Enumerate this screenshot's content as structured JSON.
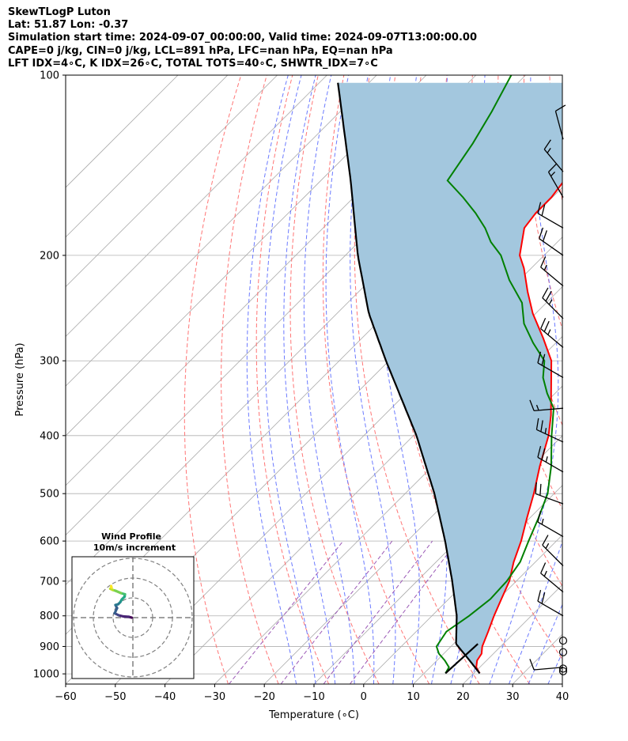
{
  "title_lines": [
    "SkewTLogP Luton",
    "Lat: 51.87   Lon: -0.37",
    "Simulation start time: 2024-09-07_00:00:00, Valid time: 2024-09-07T13:00:00.00",
    "CAPE=0 j/kg, CIN=0 j/kg, LCL=891 hPa, LFC=nan hPa, EQ=nan hPa",
    "LFT IDX=4∘C, K IDX=26∘C, TOTAL TOTS=40∘C, SHWTR_IDX=7∘C"
  ],
  "chart_data": {
    "type": "line",
    "subtype": "skew-t log-p",
    "xlabel": "Temperature (∘C)",
    "ylabel": "Pressure (hPa)",
    "xlim": [
      -60,
      40
    ],
    "ylim": [
      1040,
      100
    ],
    "y_scale": "log",
    "x_ticks": [
      -60,
      -50,
      -40,
      -30,
      -20,
      -10,
      0,
      10,
      20,
      30,
      40
    ],
    "y_ticks": [
      100,
      200,
      300,
      400,
      500,
      600,
      700,
      800,
      900,
      1000
    ],
    "grid": true,
    "series": [
      {
        "role": "temperature",
        "color": "#ff0000",
        "p": [
          998,
          975,
          950,
          925,
          900,
          850,
          800,
          750,
          700,
          650,
          600,
          550,
          500,
          450,
          400,
          370,
          340,
          300,
          275,
          250,
          230,
          210,
          200,
          180,
          170,
          160,
          150,
          140,
          130,
          120,
          110,
          100
        ],
        "t": [
          21.2,
          19.3,
          18.1,
          17.6,
          16.3,
          14.5,
          12.5,
          10.6,
          8.6,
          5.6,
          2.9,
          -0.5,
          -4.1,
          -8.4,
          -12.8,
          -16.4,
          -20.8,
          -27.3,
          -33.5,
          -40.6,
          -46.0,
          -51.5,
          -54.9,
          -59.5,
          -60.2,
          -60.2,
          -61.0,
          -62.7,
          -65.2,
          -68.8,
          -71.3,
          -74.2
        ]
      },
      {
        "role": "dewpoint",
        "color": "#008000",
        "p": [
          998,
          975,
          950,
          925,
          900,
          850,
          800,
          750,
          700,
          650,
          600,
          550,
          500,
          450,
          400,
          360,
          340,
          320,
          300,
          280,
          260,
          240,
          220,
          200,
          190,
          180,
          170,
          160,
          150,
          130,
          115,
          100
        ],
        "td": [
          14.3,
          13.8,
          11.6,
          9.0,
          7.1,
          6.1,
          7.5,
          8.4,
          8.1,
          6.9,
          4.4,
          1.8,
          -1.3,
          -6.1,
          -12.2,
          -17.3,
          -21.6,
          -25.6,
          -28.7,
          -34.6,
          -40.3,
          -44.9,
          -52.0,
          -58.7,
          -63.4,
          -67.4,
          -72.3,
          -78.0,
          -84.5,
          -86.9,
          -89.5,
          -92.9
        ]
      },
      {
        "role": "parcel",
        "color": "#000000",
        "p": [
          998,
          950,
          891,
          850,
          800,
          700,
          600,
          500,
          400,
          300,
          250,
          200,
          150,
          100
        ],
        "t": [
          21.2,
          16.6,
          10.5,
          8.1,
          5.0,
          -2.9,
          -12.4,
          -24.1,
          -39.4,
          -60.6,
          -73.6,
          -87.5,
          -104.0,
          -128.0
        ]
      }
    ],
    "shaded_area": "between parcel and temperature (#a3c7de)",
    "background_lines": [
      {
        "kind": "dry adiabats",
        "color": "#ff6666",
        "dash": "dashed"
      },
      {
        "kind": "moist adiabats",
        "color": "#5b6bff",
        "dash": "dashed"
      },
      {
        "kind": "mixing ratio",
        "color": "#9b59b6",
        "dash": "dashed"
      },
      {
        "kind": "skewed isotherms",
        "color": "#aaaaaa",
        "dash": "solid"
      }
    ],
    "wind_barbs": [
      {
        "p": 990,
        "calm": true
      },
      {
        "p": 980,
        "calm": true
      },
      {
        "p": 975,
        "speed_kt": 10,
        "dir": 265
      },
      {
        "p": 920,
        "calm": true
      },
      {
        "p": 880,
        "calm": true
      },
      {
        "p": 800,
        "speed_kt": 20,
        "dir": 300
      },
      {
        "p": 730,
        "speed_kt": 15,
        "dir": 310
      },
      {
        "p": 660,
        "speed_kt": 15,
        "dir": 315
      },
      {
        "p": 590,
        "speed_kt": 15,
        "dir": 300
      },
      {
        "p": 520,
        "speed_kt": 20,
        "dir": 290
      },
      {
        "p": 460,
        "speed_kt": 25,
        "dir": 300
      },
      {
        "p": 410,
        "speed_kt": 25,
        "dir": 295
      },
      {
        "p": 360,
        "speed_kt": 15,
        "dir": 265
      },
      {
        "p": 320,
        "speed_kt": 20,
        "dir": 300
      },
      {
        "p": 285,
        "speed_kt": 25,
        "dir": 310
      },
      {
        "p": 255,
        "speed_kt": 25,
        "dir": 315
      },
      {
        "p": 225,
        "speed_kt": 15,
        "dir": 310
      },
      {
        "p": 200,
        "speed_kt": 20,
        "dir": 305
      },
      {
        "p": 180,
        "speed_kt": 20,
        "dir": 300
      },
      {
        "p": 160,
        "speed_kt": 15,
        "dir": 330
      },
      {
        "p": 145,
        "speed_kt": 15,
        "dir": 320
      },
      {
        "p": 128,
        "speed_kt": 10,
        "dir": 345
      }
    ],
    "inset": {
      "title": "Wind Profile",
      "subtitle": "10m/s increment",
      "type": "hodograph",
      "rings": 3,
      "colormap": "viridis",
      "u": [
        -0.3,
        -1.0,
        -2.4,
        -3.6,
        -4.6,
        -4.0,
        -4.4,
        -3.7,
        -3.2,
        -2.8,
        -2.1,
        -2.0,
        -3.0,
        -4.4,
        -5.1,
        -5.7,
        -5.4,
        -5.5
      ],
      "v": [
        0.0,
        0.2,
        0.3,
        0.6,
        1.1,
        2.4,
        3.2,
        3.4,
        3.9,
        4.6,
        5.3,
        5.9,
        6.2,
        6.8,
        7.0,
        7.3,
        7.6,
        8.0
      ]
    }
  }
}
